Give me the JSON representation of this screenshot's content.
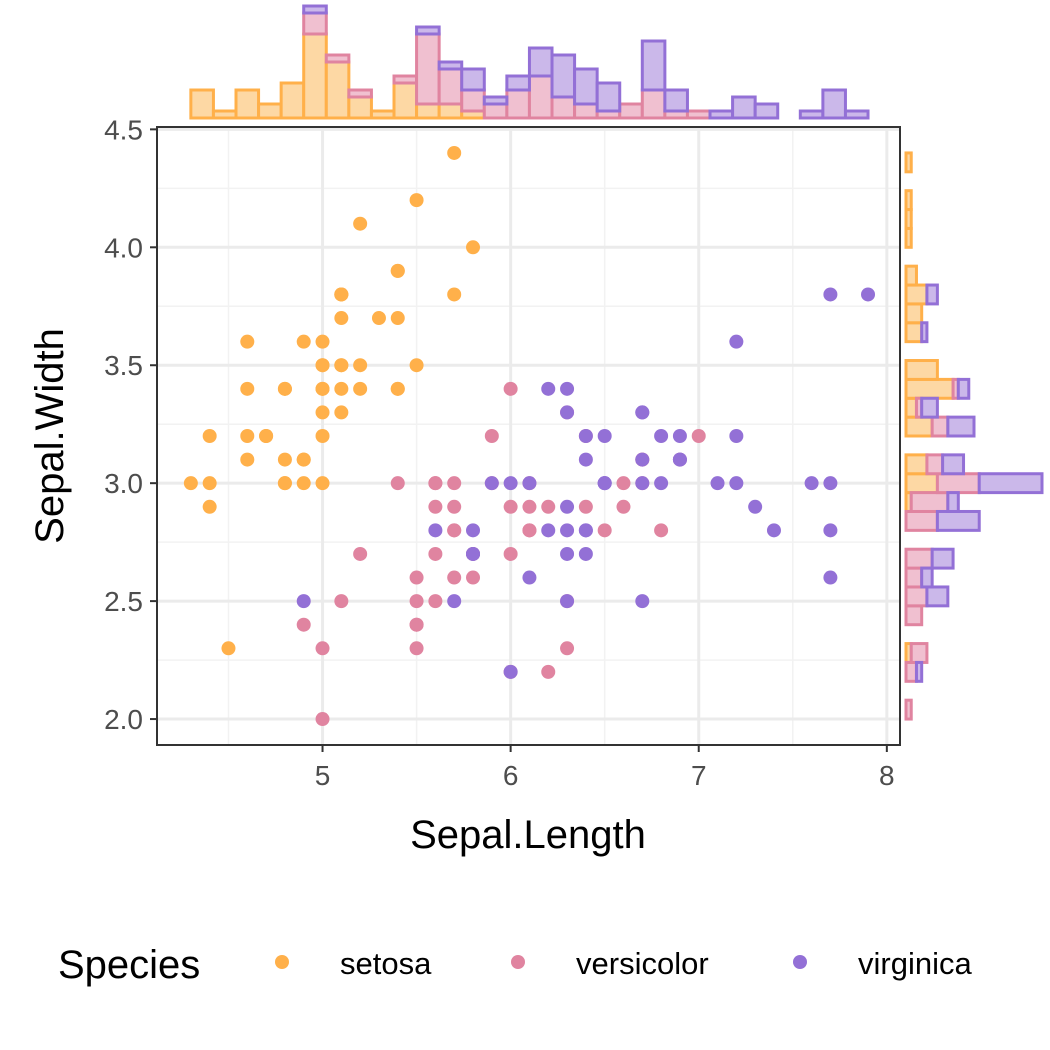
{
  "chart_data": {
    "type": "scatter",
    "subtype": "scatter with stacked marginal histograms",
    "xlabel": "Sepal.Length",
    "ylabel": "Sepal.Width",
    "xlim": [
      4.12,
      8.07
    ],
    "ylim": [
      1.89,
      4.51
    ],
    "xticks": [
      "5",
      "6",
      "7",
      "8"
    ],
    "yticks": [
      "2.0",
      "2.5",
      "3.0",
      "3.5",
      "4.0",
      "4.5"
    ],
    "grid": true,
    "legend": {
      "title": "Species",
      "position": "bottom"
    },
    "marginal_histograms": {
      "top": "Sepal.Length",
      "right": "Sepal.Width",
      "bins": 30,
      "stacked": true
    },
    "series": [
      {
        "name": "setosa",
        "color": "#FFB04A",
        "fill": "#FDD8A4",
        "points": [
          [
            5.1,
            3.5
          ],
          [
            4.9,
            3.0
          ],
          [
            4.7,
            3.2
          ],
          [
            4.6,
            3.1
          ],
          [
            5.0,
            3.6
          ],
          [
            5.4,
            3.9
          ],
          [
            4.6,
            3.4
          ],
          [
            5.0,
            3.4
          ],
          [
            4.4,
            2.9
          ],
          [
            4.9,
            3.1
          ],
          [
            5.4,
            3.7
          ],
          [
            4.8,
            3.4
          ],
          [
            4.8,
            3.0
          ],
          [
            4.3,
            3.0
          ],
          [
            5.8,
            4.0
          ],
          [
            5.7,
            4.4
          ],
          [
            5.4,
            3.9
          ],
          [
            5.1,
            3.5
          ],
          [
            5.7,
            3.8
          ],
          [
            5.1,
            3.8
          ],
          [
            5.4,
            3.4
          ],
          [
            5.1,
            3.7
          ],
          [
            4.6,
            3.6
          ],
          [
            5.1,
            3.3
          ],
          [
            4.8,
            3.4
          ],
          [
            5.0,
            3.0
          ],
          [
            5.0,
            3.4
          ],
          [
            5.2,
            3.5
          ],
          [
            5.2,
            3.4
          ],
          [
            4.7,
            3.2
          ],
          [
            4.8,
            3.1
          ],
          [
            5.4,
            3.4
          ],
          [
            5.2,
            4.1
          ],
          [
            5.5,
            4.2
          ],
          [
            4.9,
            3.1
          ],
          [
            5.0,
            3.2
          ],
          [
            5.5,
            3.5
          ],
          [
            4.9,
            3.6
          ],
          [
            4.4,
            3.0
          ],
          [
            5.1,
            3.4
          ],
          [
            5.0,
            3.5
          ],
          [
            4.5,
            2.3
          ],
          [
            4.4,
            3.2
          ],
          [
            5.0,
            3.5
          ],
          [
            5.1,
            3.8
          ],
          [
            4.8,
            3.0
          ],
          [
            5.1,
            3.8
          ],
          [
            4.6,
            3.2
          ],
          [
            5.3,
            3.7
          ],
          [
            5.0,
            3.3
          ]
        ]
      },
      {
        "name": "versicolor",
        "color": "#E084A0",
        "fill": "#F0C0D0",
        "points": [
          [
            7.0,
            3.2
          ],
          [
            6.4,
            3.2
          ],
          [
            6.9,
            3.1
          ],
          [
            5.5,
            2.3
          ],
          [
            6.5,
            2.8
          ],
          [
            5.7,
            2.8
          ],
          [
            6.3,
            3.3
          ],
          [
            4.9,
            2.4
          ],
          [
            6.6,
            2.9
          ],
          [
            5.2,
            2.7
          ],
          [
            5.0,
            2.0
          ],
          [
            5.9,
            3.0
          ],
          [
            6.0,
            2.2
          ],
          [
            6.1,
            2.9
          ],
          [
            5.6,
            2.9
          ],
          [
            6.7,
            3.1
          ],
          [
            5.6,
            3.0
          ],
          [
            5.8,
            2.7
          ],
          [
            6.2,
            2.2
          ],
          [
            5.6,
            2.5
          ],
          [
            5.9,
            3.2
          ],
          [
            6.1,
            2.8
          ],
          [
            6.3,
            2.5
          ],
          [
            6.1,
            2.8
          ],
          [
            6.4,
            2.9
          ],
          [
            6.6,
            3.0
          ],
          [
            6.8,
            2.8
          ],
          [
            6.7,
            3.0
          ],
          [
            6.0,
            2.9
          ],
          [
            5.7,
            2.6
          ],
          [
            5.5,
            2.4
          ],
          [
            5.5,
            2.4
          ],
          [
            5.8,
            2.7
          ],
          [
            6.0,
            2.7
          ],
          [
            5.4,
            3.0
          ],
          [
            6.0,
            3.4
          ],
          [
            6.7,
            3.1
          ],
          [
            6.3,
            2.3
          ],
          [
            5.6,
            3.0
          ],
          [
            5.5,
            2.5
          ],
          [
            5.5,
            2.6
          ],
          [
            6.1,
            3.0
          ],
          [
            5.8,
            2.6
          ],
          [
            5.0,
            2.3
          ],
          [
            5.6,
            2.7
          ],
          [
            5.7,
            3.0
          ],
          [
            5.7,
            2.9
          ],
          [
            6.2,
            2.9
          ],
          [
            5.1,
            2.5
          ],
          [
            5.7,
            2.8
          ]
        ]
      },
      {
        "name": "virginica",
        "color": "#9370D6",
        "fill": "#CBB8EA",
        "points": [
          [
            6.3,
            3.3
          ],
          [
            5.8,
            2.7
          ],
          [
            7.1,
            3.0
          ],
          [
            6.3,
            2.9
          ],
          [
            6.5,
            3.0
          ],
          [
            7.6,
            3.0
          ],
          [
            4.9,
            2.5
          ],
          [
            7.3,
            2.9
          ],
          [
            6.7,
            2.5
          ],
          [
            7.2,
            3.6
          ],
          [
            6.5,
            3.2
          ],
          [
            6.4,
            2.7
          ],
          [
            6.8,
            3.0
          ],
          [
            5.7,
            2.5
          ],
          [
            5.8,
            2.8
          ],
          [
            6.4,
            3.2
          ],
          [
            6.5,
            3.0
          ],
          [
            7.7,
            3.8
          ],
          [
            7.7,
            2.6
          ],
          [
            6.0,
            2.2
          ],
          [
            6.9,
            3.2
          ],
          [
            5.6,
            2.8
          ],
          [
            7.7,
            2.8
          ],
          [
            6.3,
            2.7
          ],
          [
            6.7,
            3.3
          ],
          [
            7.2,
            3.2
          ],
          [
            6.2,
            2.8
          ],
          [
            6.1,
            3.0
          ],
          [
            6.4,
            2.8
          ],
          [
            7.2,
            3.0
          ],
          [
            7.4,
            2.8
          ],
          [
            7.9,
            3.8
          ],
          [
            6.4,
            2.8
          ],
          [
            6.3,
            2.8
          ],
          [
            6.1,
            2.6
          ],
          [
            7.7,
            3.0
          ],
          [
            6.3,
            3.4
          ],
          [
            6.4,
            3.1
          ],
          [
            6.0,
            3.0
          ],
          [
            6.9,
            3.1
          ],
          [
            6.7,
            3.1
          ],
          [
            6.9,
            3.1
          ],
          [
            5.8,
            2.7
          ],
          [
            6.8,
            3.2
          ],
          [
            6.7,
            3.3
          ],
          [
            6.7,
            3.0
          ],
          [
            6.3,
            2.5
          ],
          [
            6.5,
            3.0
          ],
          [
            6.2,
            3.4
          ],
          [
            5.9,
            3.0
          ]
        ]
      }
    ]
  }
}
